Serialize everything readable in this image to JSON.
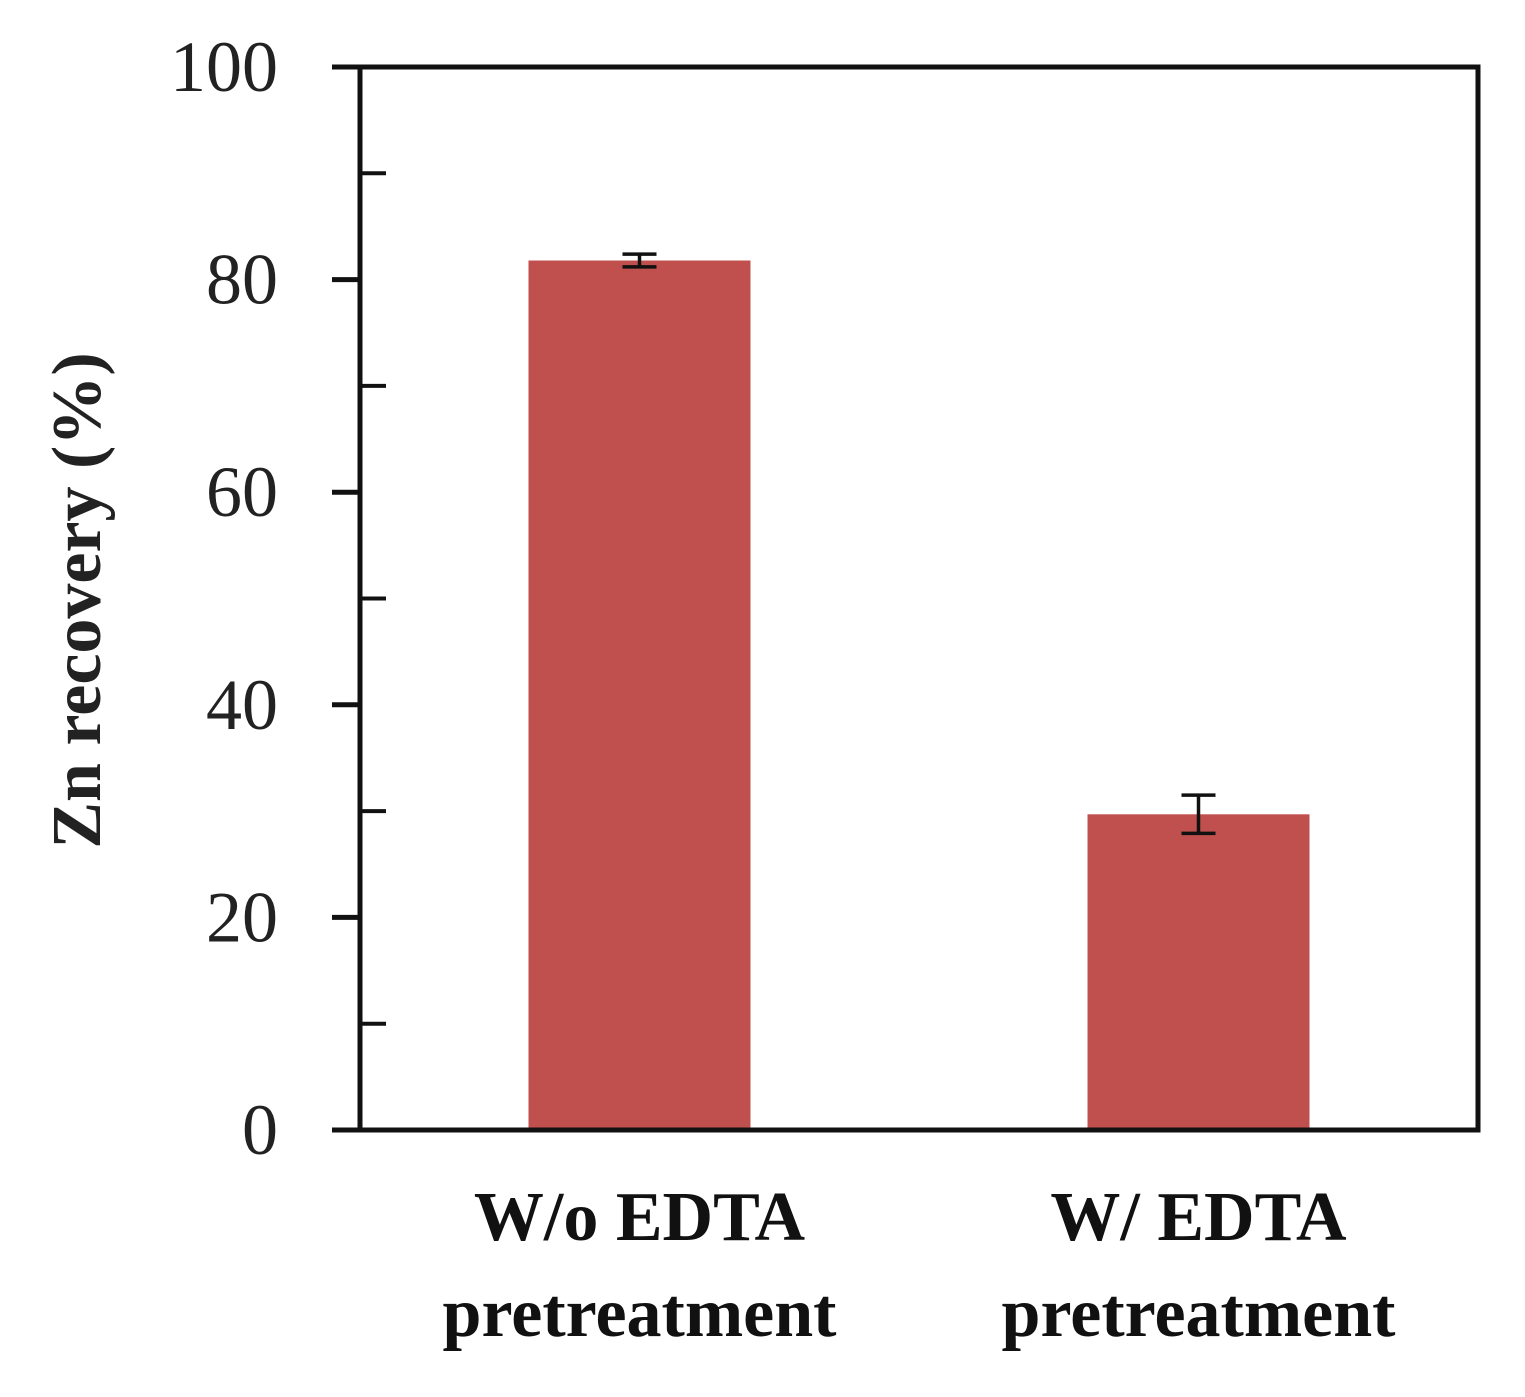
{
  "chart_data": {
    "type": "bar",
    "title": "",
    "xlabel": "",
    "ylabel": "Zn recovery (%)",
    "ylim": [
      0,
      100
    ],
    "yticks": [
      0,
      20,
      40,
      60,
      80,
      100
    ],
    "minor_yticks": [
      10,
      30,
      50,
      70,
      90
    ],
    "grid": false,
    "categories": [
      [
        "W/o EDTA",
        "pretreatment"
      ],
      [
        "W/ EDTA",
        "pretreatment"
      ]
    ],
    "values": [
      81.8,
      29.7
    ],
    "errors": [
      0.6,
      1.8
    ],
    "colors": {
      "bar": "#c0504d",
      "axis": "#111111",
      "error_bar": "#111111"
    }
  }
}
